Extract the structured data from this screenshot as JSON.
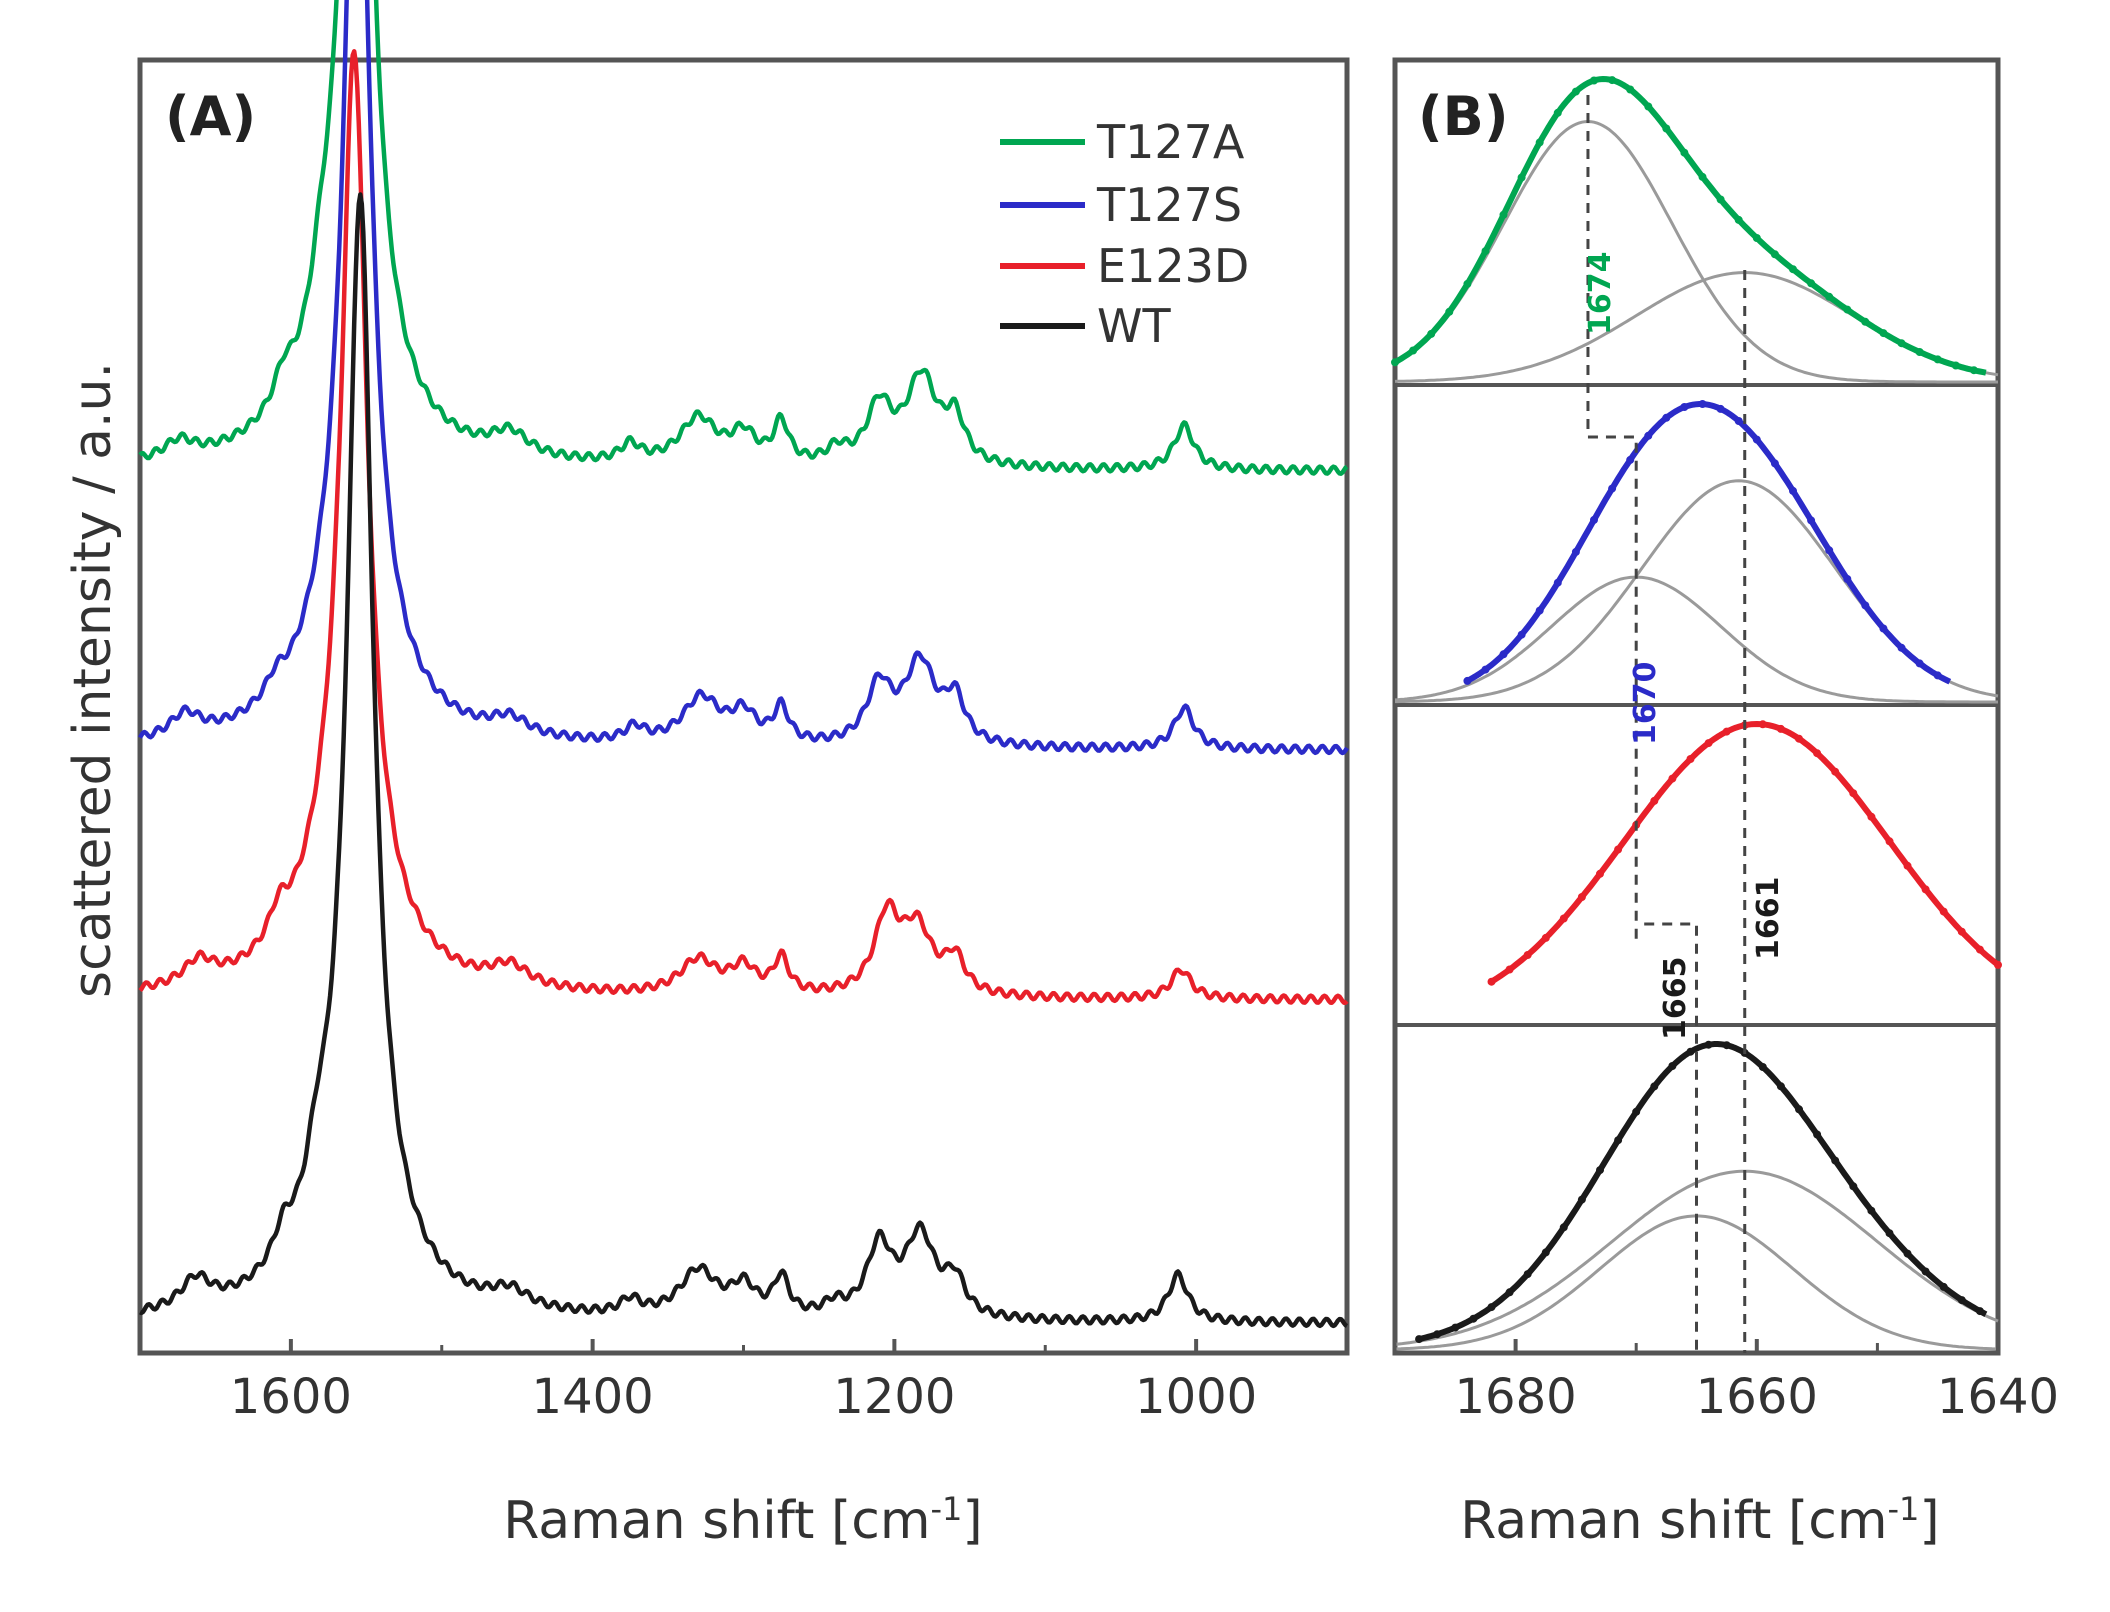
{
  "chart_data": [
    {
      "panel": "(A)",
      "type": "line",
      "xlabel": "Raman shift [cm-1]",
      "xlabel_main": "Raman shift [cm",
      "xlabel_sup": "-1",
      "xlabel_end": "]",
      "ylabel": "scattered intensity / a.u.",
      "xlim": [
        1700,
        900
      ],
      "xticks": [
        "1600",
        "1400",
        "1200",
        "1000"
      ],
      "xtick_values": [
        1600,
        1400,
        1200,
        1000
      ],
      "legend": {
        "position": "top-right",
        "entries": [
          "T127A",
          "T127S",
          "E123D",
          "WT"
        ]
      },
      "series": [
        {
          "name": "T127A",
          "color": "#00a651",
          "offset": 3,
          "peaks": [
            [
              1556,
              10,
              3.25
            ],
            [
              1562,
              30,
              0.45
            ],
            [
              1674,
              12,
              0.06
            ],
            [
              1605,
              8,
              0.1
            ],
            [
              1580,
              8,
              0.15
            ],
            [
              1455,
              15,
              0.08
            ],
            [
              1375,
              8,
              0.06
            ],
            [
              1330,
              15,
              0.16
            ],
            [
              1300,
              10,
              0.1
            ],
            [
              1275,
              6,
              0.14
            ],
            [
              1238,
              8,
              0.05
            ],
            [
              1210,
              10,
              0.2
            ],
            [
              1182,
              12,
              0.3
            ],
            [
              1160,
              8,
              0.15
            ],
            [
              1008,
              8,
              0.15
            ]
          ]
        },
        {
          "name": "T127S",
          "color": "#2b2bc8",
          "offset": 2.05,
          "peaks": [
            [
              1556,
              10,
              3.12
            ],
            [
              1562,
              30,
              0.45
            ],
            [
              1670,
              12,
              0.08
            ],
            [
              1610,
              8,
              0.06
            ],
            [
              1455,
              15,
              0.06
            ],
            [
              1372,
              8,
              0.05
            ],
            [
              1328,
              15,
              0.16
            ],
            [
              1300,
              10,
              0.1
            ],
            [
              1275,
              6,
              0.12
            ],
            [
              1210,
              10,
              0.2
            ],
            [
              1183,
              12,
              0.28
            ],
            [
              1160,
              8,
              0.15
            ],
            [
              1008,
              8,
              0.14
            ]
          ]
        },
        {
          "name": "E123D",
          "color": "#e8202a",
          "offset": 1.2,
          "peaks": [
            [
              1558,
              10,
              2.75
            ],
            [
              1564,
              30,
              0.5
            ],
            [
              1661,
              12,
              0.08
            ],
            [
              1608,
              8,
              0.1
            ],
            [
              1455,
              15,
              0.07
            ],
            [
              1330,
              15,
              0.12
            ],
            [
              1300,
              10,
              0.09
            ],
            [
              1275,
              6,
              0.12
            ],
            [
              1205,
              10,
              0.26
            ],
            [
              1185,
              12,
              0.22
            ],
            [
              1160,
              8,
              0.12
            ],
            [
              1010,
              8,
              0.1
            ]
          ]
        },
        {
          "name": "WT",
          "color": "#1a1a1a",
          "offset": 0.1,
          "peaks": [
            [
              1554,
              10,
              3.4
            ],
            [
              1560,
              30,
              0.45
            ],
            [
              1663,
              12,
              0.1
            ],
            [
              1605,
              8,
              0.1
            ],
            [
              1583,
              8,
              0.15
            ],
            [
              1455,
              15,
              0.06
            ],
            [
              1375,
              8,
              0.05
            ],
            [
              1330,
              15,
              0.16
            ],
            [
              1300,
              10,
              0.1
            ],
            [
              1275,
              6,
              0.13
            ],
            [
              1240,
              8,
              0.04
            ],
            [
              1210,
              10,
              0.24
            ],
            [
              1183,
              12,
              0.28
            ],
            [
              1160,
              8,
              0.12
            ],
            [
              1012,
              8,
              0.16
            ]
          ]
        }
      ]
    },
    {
      "panel": "(B)",
      "type": "line",
      "xlabel": "Raman shift [cm-1]",
      "xlabel_main": "Raman shift [cm",
      "xlabel_sup": "-1",
      "xlabel_end": "]",
      "xlim": [
        1690,
        1640
      ],
      "xticks": [
        "1680",
        "1660",
        "1640"
      ],
      "xtick_values": [
        1680,
        1660,
        1640
      ],
      "series": [
        {
          "name": "T127A",
          "color": "#00a651",
          "components": [
            [
              1674,
              7,
              1.0
            ],
            [
              1661,
              9,
              0.42
            ]
          ],
          "data_range": [
            1690,
            1641
          ]
        },
        {
          "name": "T127S",
          "color": "#2b2bc8",
          "components": [
            [
              1670,
              7,
              0.48
            ],
            [
              1661.5,
              8,
              0.85
            ]
          ],
          "data_range": [
            1684,
            1644
          ]
        },
        {
          "name": "E123D",
          "color": "#e8202a",
          "components": [
            [
              1660,
              11,
              1.0
            ]
          ],
          "data_range": [
            1682,
            1640
          ]
        },
        {
          "name": "WT",
          "color": "#1a1a1a",
          "components": [
            [
              1665,
              8,
              0.45
            ],
            [
              1661,
              11,
              0.6
            ]
          ],
          "data_range": [
            1688,
            1641
          ]
        }
      ],
      "annotations": [
        {
          "text": "1674",
          "color": "#00a651"
        },
        {
          "text": "1670",
          "color": "#2b2bc8"
        },
        {
          "text": "1665",
          "color": "#1a1a1a"
        },
        {
          "text": "1661",
          "color": "#1a1a1a"
        }
      ],
      "reference_lines": [
        1674,
        1670,
        1665,
        1661
      ]
    }
  ]
}
